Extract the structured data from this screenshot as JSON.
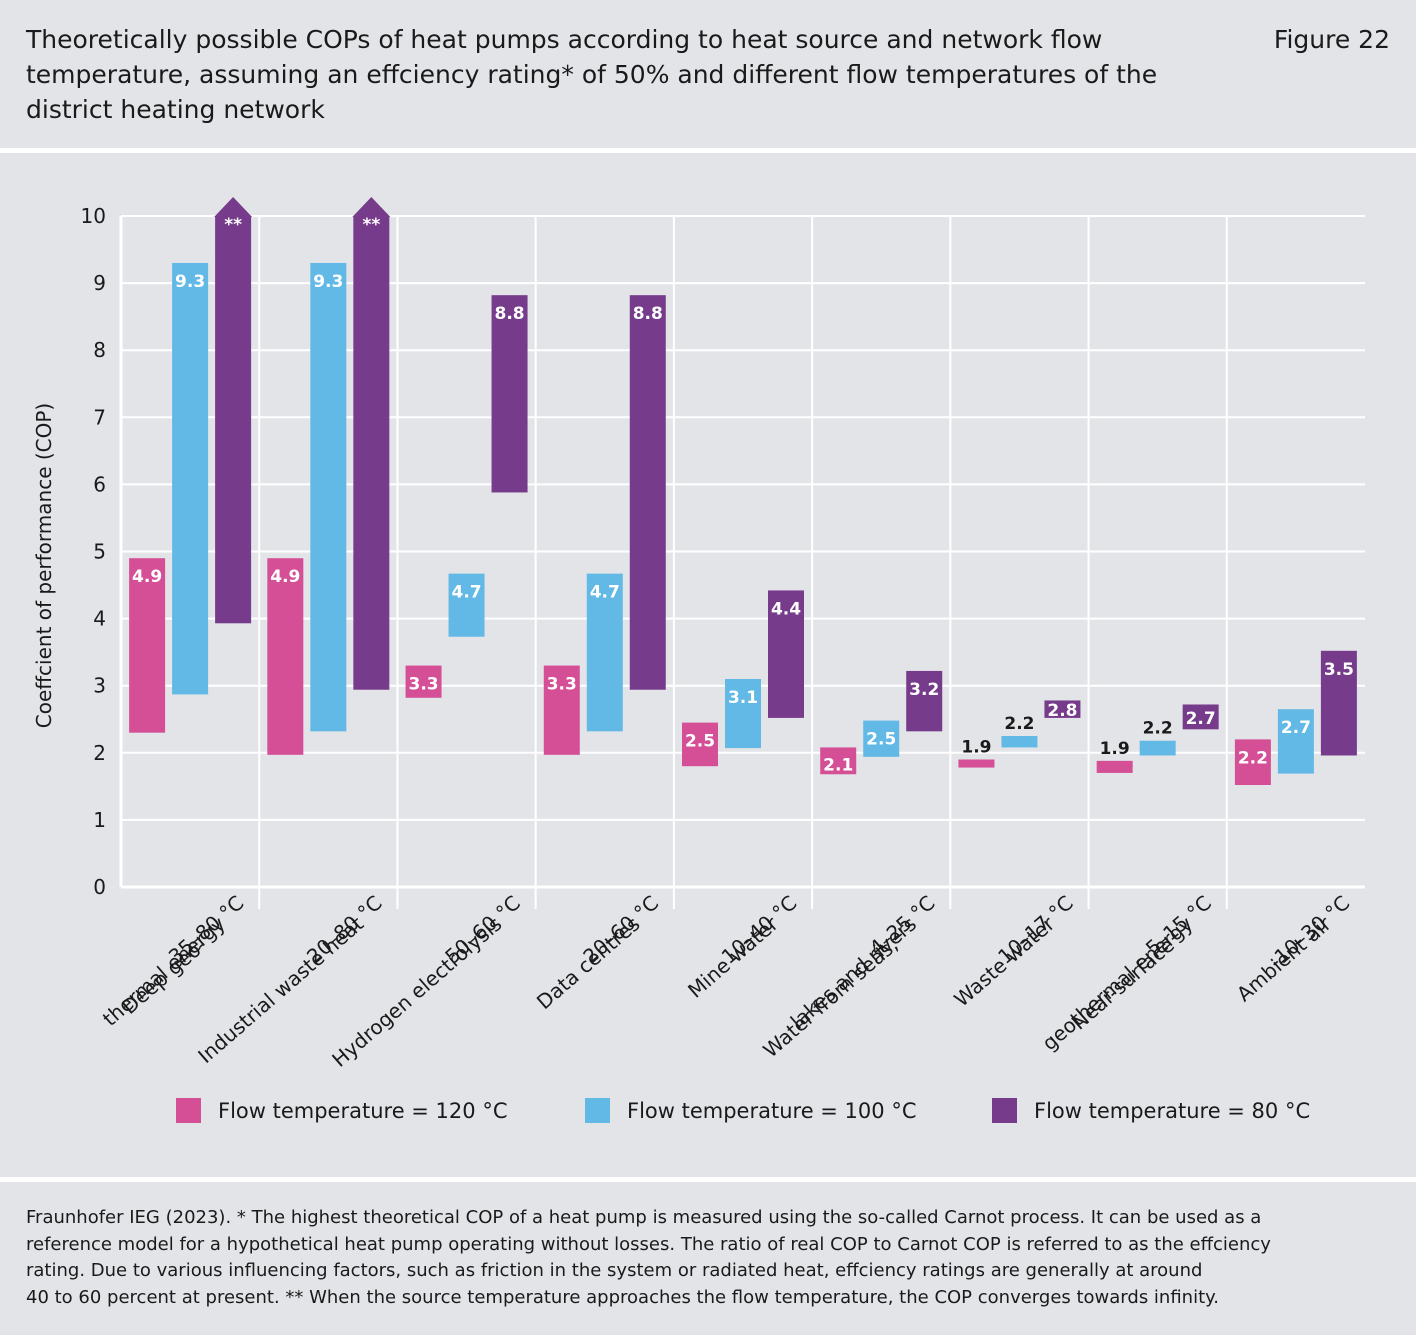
{
  "header": {
    "title": "Theoretically possible COPs of heat pumps according to heat source and network flow temperature, assuming an effciency rating* of 50% and different flow temperatures of the district heating network",
    "figure_label": "Figure 22"
  },
  "chart_data": {
    "type": "bar",
    "subtype": "floating-range-bar",
    "title": "Theoretically possible COPs of heat pumps according to heat source and network flow temperature",
    "ylabel": "Coeffcient of performance (COP)",
    "xlabel": "",
    "ylim": [
      0,
      10
    ],
    "yticks": [
      "0",
      "1",
      "2",
      "3",
      "4",
      "5",
      "6",
      "7",
      "8",
      "9",
      "10"
    ],
    "grid": true,
    "legend_position": "bottom",
    "categories": [
      {
        "lines": [
          "Deep geo-",
          "thermal energy",
          "35–80 °C"
        ]
      },
      {
        "lines": [
          "Industrial waste heat",
          "20–80 °C"
        ]
      },
      {
        "lines": [
          "Hydrogen electrolysis",
          "50–60 °C"
        ]
      },
      {
        "lines": [
          "Data centres",
          "20–60 °C"
        ]
      },
      {
        "lines": [
          "Mine water",
          "10–40 °C"
        ]
      },
      {
        "lines": [
          "Water from seas,",
          "lakes and rivers",
          "4–25 °C"
        ]
      },
      {
        "lines": [
          "Waste water",
          "10–17 °C"
        ]
      },
      {
        "lines": [
          "Near-surface",
          "geothermal energy",
          "5–15 °C"
        ]
      },
      {
        "lines": [
          "Ambient air",
          "-10–30 °C"
        ]
      }
    ],
    "series": [
      {
        "name": "Flow temperature = 120 °C",
        "color": "#d44f96",
        "ranges": [
          [
            2.3,
            4.9
          ],
          [
            1.97,
            4.9
          ],
          [
            2.82,
            3.3
          ],
          [
            1.97,
            3.3
          ],
          [
            1.8,
            2.45
          ],
          [
            1.68,
            2.08
          ],
          [
            1.78,
            1.9
          ],
          [
            1.7,
            1.88
          ],
          [
            1.52,
            2.2
          ]
        ],
        "labels": [
          "4.9",
          "4.9",
          "3.3",
          "3.3",
          "2.5",
          "2.1",
          "1.9",
          "1.9",
          "2.2"
        ]
      },
      {
        "name": "Flow temperature = 100 °C",
        "color": "#62b9e6",
        "ranges": [
          [
            2.87,
            9.3
          ],
          [
            2.32,
            9.3
          ],
          [
            3.73,
            4.67
          ],
          [
            2.32,
            4.67
          ],
          [
            2.07,
            3.1
          ],
          [
            1.94,
            2.48
          ],
          [
            2.08,
            2.25
          ],
          [
            1.96,
            2.18
          ],
          [
            1.69,
            2.65
          ]
        ],
        "labels": [
          "9.3",
          "9.3",
          "4.7",
          "4.7",
          "3.1",
          "2.5",
          "2.2",
          "2.2",
          "2.7"
        ]
      },
      {
        "name": "Flow temperature = 80 °C",
        "color": "#763b8b",
        "ranges": [
          [
            3.93,
            10.0
          ],
          [
            2.94,
            10.0
          ],
          [
            5.88,
            8.82
          ],
          [
            2.94,
            8.82
          ],
          [
            2.52,
            4.42
          ],
          [
            2.32,
            3.22
          ],
          [
            2.52,
            2.78
          ],
          [
            2.35,
            2.72
          ],
          [
            1.96,
            3.52
          ]
        ],
        "labels": [
          "**",
          "**",
          "8.8",
          "8.8",
          "4.4",
          "3.2",
          "2.8",
          "2.7",
          "3.5"
        ],
        "open_top": [
          true,
          true,
          false,
          false,
          false,
          false,
          false,
          false,
          false
        ]
      }
    ]
  },
  "footnote": {
    "lines": [
      "Fraunhofer IEG (2023). * The highest theoretical COP of a heat pump is measured using the so-called Carnot process. It can be used as a",
      "reference model for a hypothetical heat pump operating without losses. The ratio of real COP to Carnot COP is referred to as the effciency",
      "rating. Due to various influencing factors, such as friction in the system or radiated heat, effciency ratings are generally at around",
      "40 to 60 percent at present. ** When the source temperature approaches the flow temperature, the COP converges towards infinity."
    ]
  }
}
